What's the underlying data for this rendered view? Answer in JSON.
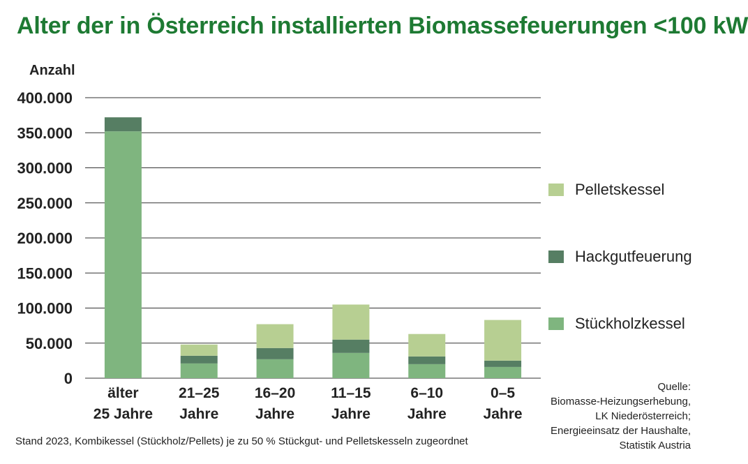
{
  "title": "Alter der in Österreich installierten Biomassefeuerungen <100 kW",
  "colors": {
    "title": "#1e7a33",
    "Stückholzkessel": "#7fb57f",
    "Hackgutfeuerung": "#567e63",
    "Pelletskessel": "#b7cf92",
    "grid": "#333333"
  },
  "chart_data": {
    "type": "bar",
    "stacked": true,
    "ylabel": "Anzahl",
    "ylim": [
      0,
      400000
    ],
    "yticks": [
      0,
      50000,
      100000,
      150000,
      200000,
      250000,
      300000,
      350000,
      400000
    ],
    "ytick_labels": [
      "0",
      "50.000",
      "100.000",
      "150.000",
      "200.000",
      "250.000",
      "300.000",
      "350.000",
      "400.000"
    ],
    "grid": true,
    "legend_position": "right",
    "categories": [
      [
        "älter",
        "25 Jahre"
      ],
      [
        "21–25",
        "Jahre"
      ],
      [
        "16–20",
        "Jahre"
      ],
      [
        "11–15",
        "Jahre"
      ],
      [
        "6–10",
        "Jahre"
      ],
      [
        "0–5",
        "Jahre"
      ]
    ],
    "series": [
      {
        "name": "Stückholzkessel",
        "values": [
          352000,
          21000,
          27000,
          36000,
          20000,
          16000
        ]
      },
      {
        "name": "Hackgutfeuerung",
        "values": [
          20000,
          11000,
          16000,
          19000,
          11000,
          9000
        ]
      },
      {
        "name": "Pelletskessel",
        "values": [
          0,
          16000,
          34000,
          50000,
          32000,
          58000
        ]
      }
    ]
  },
  "legend": [
    "Pelletskessel",
    "Hackgutfeuerung",
    "Stückholzkessel"
  ],
  "source_lines": [
    "Quelle:",
    "Biomasse-Heizungserhebung,",
    "LK Niederösterreich;",
    "Energieeinsatz der Haushalte,",
    "Statistik Austria"
  ],
  "footnote": "Stand 2023, Kombikessel (Stückholz/Pellets) je zu 50 % Stückgut- und Pelletskesseln zugeordnet"
}
